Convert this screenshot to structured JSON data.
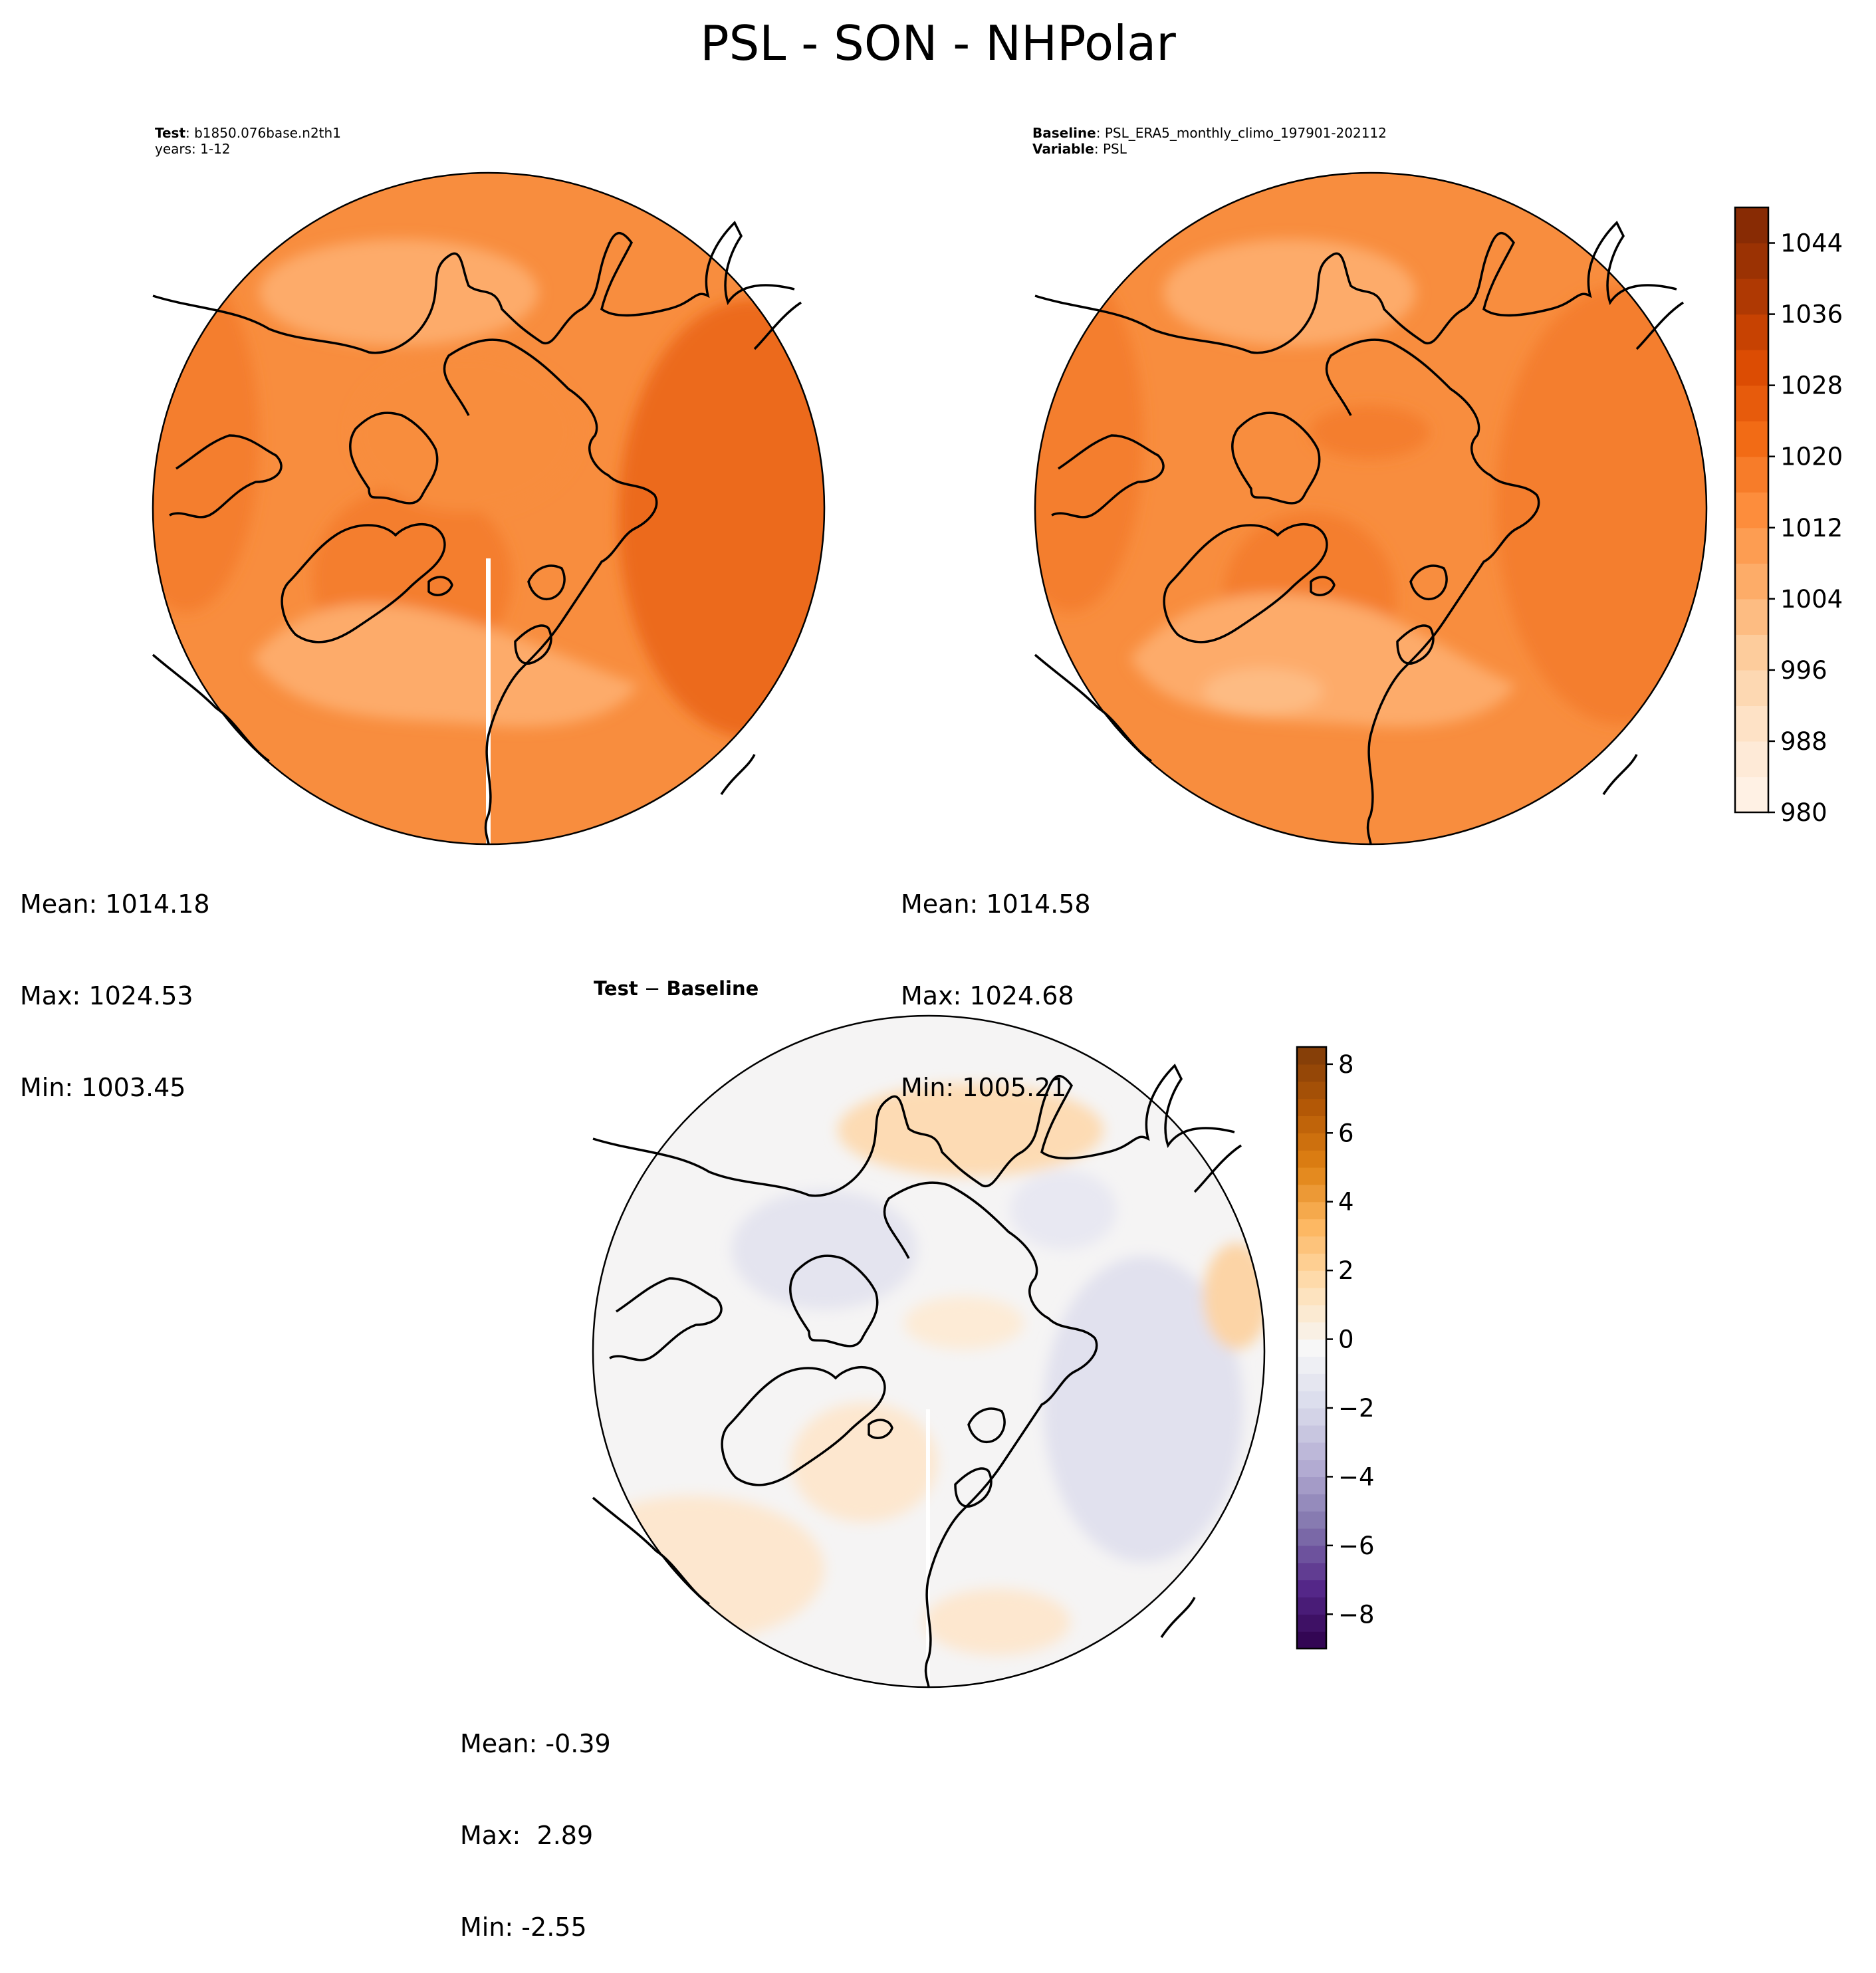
{
  "figure": {
    "title": "PSL - SON - NHPolar"
  },
  "panels": {
    "test": {
      "label_key": "Test",
      "label_value": ": b1850.076base.n2th1",
      "line2": "years: 1-12",
      "stats": {
        "mean": "Mean: 1014.18",
        "max": "Max: 1024.53",
        "min": "Min: 1003.45"
      }
    },
    "baseline": {
      "label_key": "Baseline",
      "label_value": ": PSL_ERA5_monthly_climo_197901-202112",
      "var_key": "Variable",
      "var_value": ": PSL",
      "stats": {
        "mean": "Mean: 1014.58",
        "max": "Max: 1024.68",
        "min": "Min: 1005.21"
      }
    },
    "diff": {
      "title_left": "Test",
      "title_op": " − ",
      "title_right": "Baseline",
      "stats": {
        "mean": "Mean: -0.39",
        "max": "Max:  2.89",
        "min": "Min: -2.55"
      }
    }
  },
  "colors": {
    "map_outline": "#000000",
    "coast": "#000000",
    "oranges": [
      "#fff5eb",
      "#fee6ce",
      "#fdd0a2",
      "#fdae6b",
      "#fd8d3c",
      "#f16913",
      "#d94801",
      "#a63603",
      "#7f2704"
    ],
    "puor": [
      "#2d004b",
      "#542788",
      "#8073ac",
      "#b2abd2",
      "#d8daeb",
      "#f7f7f7",
      "#fee0b6",
      "#fdb863",
      "#e08214",
      "#b35806",
      "#7f3b08"
    ]
  },
  "chart_data": [
    {
      "type": "heatmap",
      "name": "test",
      "projection": "north-polar-stereographic",
      "title": "",
      "colorbar": "shared-with-baseline",
      "value_range": [
        1003.45,
        1024.53
      ],
      "mean": 1014.18
    },
    {
      "type": "heatmap",
      "name": "baseline",
      "projection": "north-polar-stereographic",
      "title": "",
      "colorbar": {
        "ticks": [
          "1044",
          "1036",
          "1028",
          "1020",
          "1012",
          "1004",
          "996",
          "988",
          "980"
        ],
        "range": [
          980,
          1048
        ],
        "levels": 17
      },
      "value_range": [
        1005.21,
        1024.68
      ],
      "mean": 1014.58
    },
    {
      "type": "heatmap",
      "name": "test-minus-baseline",
      "projection": "north-polar-stereographic",
      "title": "",
      "colorbar": {
        "ticks": [
          "8",
          "6",
          "4",
          "2",
          "0",
          "−2",
          "−4",
          "−6",
          "−8"
        ],
        "range": [
          -9,
          8.5
        ],
        "levels": 35
      },
      "value_range": [
        -2.55,
        2.89
      ],
      "mean": -0.39
    }
  ]
}
